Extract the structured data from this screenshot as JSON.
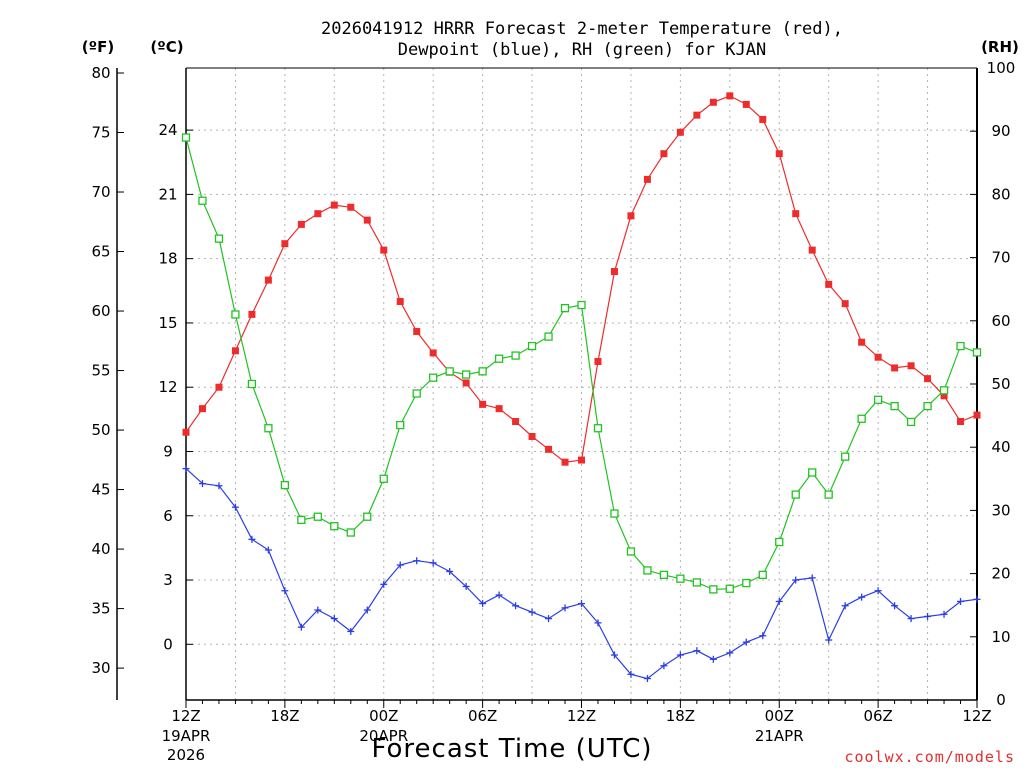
{
  "chart_data": {
    "type": "line",
    "title_line1": "2026041912 HRRR Forecast 2-meter Temperature (red),",
    "title_line2": "Dewpoint (blue), RH (green) for KJAN",
    "xlabel": "Forecast Time (UTC)",
    "credit": "coolwx.com/models",
    "units": {
      "fahrenheit": "(ºF)",
      "celsius": "(ºC)",
      "rh": "(RH)"
    },
    "forecast_hours_range": [
      0,
      48
    ],
    "celsius_axis": {
      "range": [
        -2.6,
        26.9
      ],
      "ticks": [
        0,
        3,
        6,
        9,
        12,
        15,
        18,
        21,
        24
      ]
    },
    "fahrenheit_axis": {
      "ticks": [
        30,
        35,
        40,
        45,
        50,
        55,
        60,
        65,
        70,
        75,
        80
      ]
    },
    "rh_axis": {
      "range": [
        0,
        100
      ],
      "ticks": [
        0,
        10,
        20,
        30,
        40,
        50,
        60,
        70,
        80,
        90,
        100
      ]
    },
    "x_ticks": [
      {
        "hour": 0,
        "label": "12Z",
        "date": "19APR",
        "year": "2026"
      },
      {
        "hour": 6,
        "label": "18Z",
        "date": "",
        "year": ""
      },
      {
        "hour": 12,
        "label": "00Z",
        "date": "20APR",
        "year": ""
      },
      {
        "hour": 18,
        "label": "06Z",
        "date": "",
        "year": ""
      },
      {
        "hour": 24,
        "label": "12Z",
        "date": "",
        "year": ""
      },
      {
        "hour": 30,
        "label": "18Z",
        "date": "",
        "year": ""
      },
      {
        "hour": 36,
        "label": "00Z",
        "date": "21APR",
        "year": ""
      },
      {
        "hour": 42,
        "label": "06Z",
        "date": "",
        "year": ""
      },
      {
        "hour": 48,
        "label": "12Z",
        "date": "",
        "year": ""
      }
    ],
    "series": [
      {
        "name": "2-meter Temperature",
        "axis": "celsius",
        "color": "#ee2c2c",
        "marker": "filled-square",
        "values": [
          9.9,
          11.0,
          12.0,
          13.7,
          15.4,
          17.0,
          18.7,
          19.6,
          20.1,
          20.5,
          20.4,
          19.8,
          18.4,
          16.0,
          14.6,
          13.6,
          12.7,
          12.2,
          11.2,
          11.0,
          10.4,
          9.7,
          9.1,
          8.5,
          8.6,
          13.2,
          17.4,
          20.0,
          21.7,
          22.9,
          23.9,
          24.7,
          25.3,
          25.6,
          25.2,
          24.5,
          22.9,
          20.1,
          18.4,
          16.8,
          15.9,
          14.1,
          13.4,
          12.9,
          13.0,
          12.4,
          11.6,
          10.4,
          10.7
        ]
      },
      {
        "name": "Dewpoint",
        "axis": "celsius",
        "color": "#2a3ee6",
        "marker": "plus",
        "values": [
          8.2,
          7.5,
          7.4,
          6.4,
          4.9,
          4.4,
          2.5,
          0.8,
          1.6,
          1.2,
          0.6,
          1.6,
          2.8,
          3.7,
          3.9,
          3.8,
          3.4,
          2.7,
          1.9,
          2.3,
          1.8,
          1.5,
          1.2,
          1.7,
          1.9,
          1.0,
          -0.5,
          -1.4,
          -1.6,
          -1.0,
          -0.5,
          -0.3,
          -0.7,
          -0.4,
          0.1,
          0.4,
          2.0,
          3.0,
          3.1,
          0.2,
          1.8,
          2.2,
          2.5,
          1.8,
          1.2,
          1.3,
          1.4,
          2.0,
          2.1
        ]
      },
      {
        "name": "RH",
        "axis": "rh",
        "color": "#22c322",
        "marker": "open-square",
        "values": [
          89,
          79,
          73,
          61,
          50,
          43,
          34,
          28.5,
          29,
          27.5,
          26.5,
          29,
          35,
          43.5,
          48.5,
          51,
          52,
          51.5,
          52,
          54,
          54.5,
          56,
          57.5,
          62,
          62.5,
          43,
          29.5,
          23.5,
          20.5,
          19.8,
          19.2,
          18.6,
          17.5,
          17.6,
          18.5,
          19.8,
          25,
          32.5,
          36,
          32.5,
          38.5,
          44.5,
          47.5,
          46.5,
          44,
          46.5,
          49,
          56,
          55
        ]
      }
    ]
  }
}
